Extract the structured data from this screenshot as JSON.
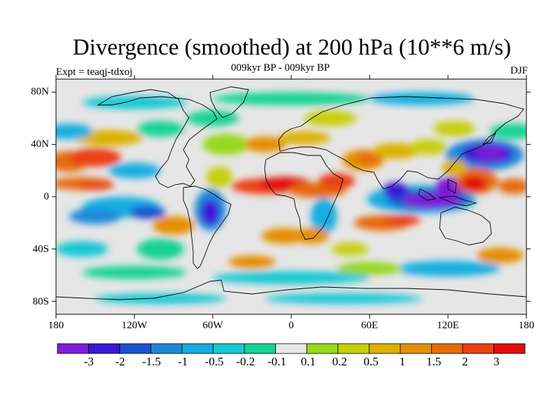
{
  "title": "Divergence (smoothed) at 200 hPa (10**6 m/s)",
  "subtitle": "009kyr BP - 009kyr BP",
  "experiment": "Expt = teaqj-tdxoj",
  "season": "DJF",
  "lat_labels": [
    "80N",
    "40N",
    "0",
    "40S",
    "80S"
  ],
  "lon_labels": [
    "180",
    "120W",
    "60W",
    "0",
    "60E",
    "120E",
    "180"
  ],
  "colorbar": {
    "colors": [
      "#7b1fd6",
      "#3a18d8",
      "#1b52d0",
      "#1c8ad8",
      "#15aee0",
      "#18c8d4",
      "#13d394",
      "#e6e6e6",
      "#98d81a",
      "#c6cf08",
      "#ddb004",
      "#e58e05",
      "#e76a08",
      "#ea3f12",
      "#e30d0d"
    ],
    "labels": [
      "-3",
      "-2",
      "-1.5",
      "-1",
      "-0.5",
      "-0.2",
      "-0.1",
      "0.1",
      "0.2",
      "0.5",
      "1",
      "1.5",
      "2",
      "3"
    ]
  },
  "chart_data": {
    "type": "heatmap",
    "variable": "Divergence (smoothed) at 200 hPa",
    "units": "10**6 m/s",
    "x_range_deg": [
      -180,
      180
    ],
    "y_range_deg": [
      -90,
      90
    ],
    "levels": [
      -3,
      -2,
      -1.5,
      -1,
      -0.5,
      -0.2,
      -0.1,
      0.1,
      0.2,
      0.5,
      1,
      1.5,
      2,
      3
    ],
    "features": [
      {
        "region": "Maritime Continent / Indian Ocean",
        "lon": 105,
        "lat": 0,
        "sign": "negative",
        "value": -3
      },
      {
        "region": "Western Pacific",
        "lon": 150,
        "lat": 30,
        "sign": "negative",
        "value": -3
      },
      {
        "region": "Tropical Atlantic / Africa band",
        "lon": -10,
        "lat": 8,
        "sign": "positive",
        "value": 3
      },
      {
        "region": "Central Pacific",
        "lon": -160,
        "lat": 10,
        "sign": "positive",
        "value": 2
      },
      {
        "region": "Western Pacific north of equator",
        "lon": 140,
        "lat": 10,
        "sign": "positive",
        "value": 3
      },
      {
        "region": "Subtropical North Pacific",
        "lon": -150,
        "lat": 30,
        "sign": "positive",
        "value": 2
      },
      {
        "region": "Eastern Pacific",
        "lon": -120,
        "lat": -10,
        "sign": "negative",
        "value": -2
      },
      {
        "region": "South America",
        "lon": -60,
        "lat": -10,
        "sign": "negative",
        "value": -2
      },
      {
        "region": "Southern Indian Ocean",
        "lon": 70,
        "lat": -20,
        "sign": "positive",
        "value": 2
      },
      {
        "region": "Middle East",
        "lon": 60,
        "lat": 30,
        "sign": "positive",
        "value": 1.5
      },
      {
        "region": "Antarctic coast",
        "lon": 0,
        "lat": -75,
        "sign": "negative",
        "value": -0.5
      }
    ]
  }
}
